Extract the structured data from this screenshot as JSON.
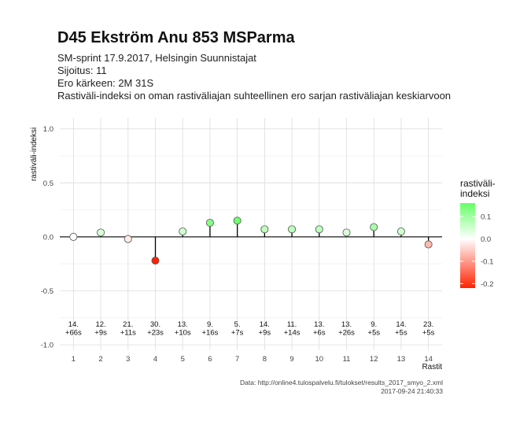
{
  "chart_data": {
    "type": "scatter",
    "title": "D45 Ekström Anu 853 MSParma",
    "subtitle_lines": [
      "SM-sprint 17.9.2017, Helsingin Suunnistajat",
      "Sijoitus: 11",
      "Ero kärkeen: 2M 31S",
      "Rastiväli-indeksi on oman rastiväliajan suhteellinen ero sarjan rastiväliajan keskiarvoon"
    ],
    "xlabel": "Rastit",
    "ylabel": "rastiväli-indeksi",
    "ylim": [
      -1.05,
      1.1
    ],
    "yticks": [
      1.0,
      0.5,
      0.0,
      -0.5,
      -1.0
    ],
    "ytick_labels": [
      "1.0",
      "0.5",
      "0.0",
      "-0.5",
      "-1.0"
    ],
    "x_positions": [
      1,
      2,
      3,
      4,
      5,
      6,
      7,
      8,
      9,
      10,
      11,
      12,
      13,
      14
    ],
    "x_tick_labels": [
      "1",
      "2",
      "3",
      "4",
      "5",
      "6",
      "7",
      "8",
      "9",
      "10",
      "11",
      "12",
      "13",
      "14"
    ],
    "values": [
      0.0,
      0.04,
      -0.02,
      -0.22,
      0.05,
      0.13,
      0.15,
      0.07,
      0.07,
      0.07,
      0.04,
      0.09,
      0.05,
      -0.07
    ],
    "annotations": [
      [
        "14.",
        "+66s"
      ],
      [
        "12.",
        "+9s"
      ],
      [
        "21.",
        "+11s"
      ],
      [
        "30.",
        "+23s"
      ],
      [
        "13.",
        "+10s"
      ],
      [
        "9.",
        "+16s"
      ],
      [
        "5.",
        "+7s"
      ],
      [
        "14.",
        "+9s"
      ],
      [
        "11.",
        "+14s"
      ],
      [
        "13.",
        "+6s"
      ],
      [
        "13.",
        "+26s"
      ],
      [
        "9.",
        "+5s"
      ],
      [
        "14.",
        "+5s"
      ],
      [
        "23.",
        "+5s"
      ]
    ],
    "grid": true,
    "legend": {
      "title_lines": [
        "rastiväli-",
        "indeksi"
      ],
      "tick_values": [
        0.1,
        0.0,
        -0.1,
        -0.2
      ],
      "tick_labels": [
        "0.1",
        "0.0",
        "-0.1",
        "-0.2"
      ],
      "range": [
        -0.22,
        0.16
      ],
      "placement": "right"
    },
    "colors": {
      "high": "#66ff66",
      "mid": "#ffffff",
      "low": "#ff2200"
    },
    "caption_lines": [
      "Data: http://online4.tulospalvelu.fi/tulokset/results_2017_smyo_2.xml",
      "2017-09-24 21:40:33"
    ]
  }
}
